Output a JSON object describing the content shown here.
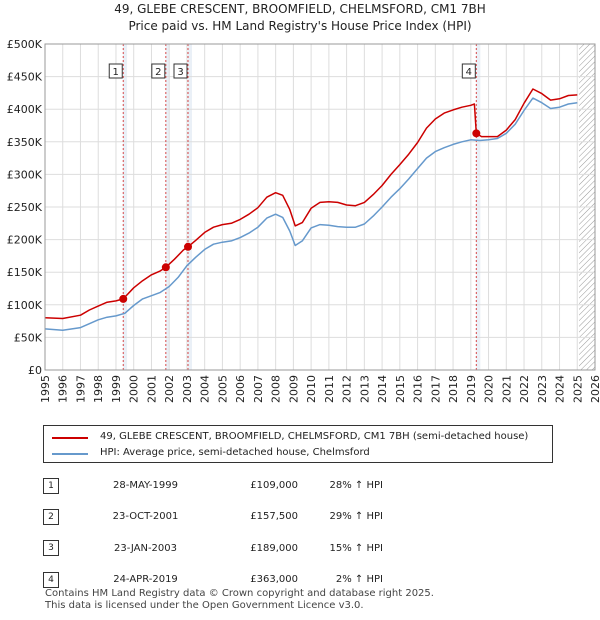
{
  "title_line1": "49, GLEBE CRESCENT, BROOMFIELD, CHELMSFORD, CM1 7BH",
  "title_line2": "Price paid vs. HM Land Registry's House Price Index (HPI)",
  "colors": {
    "property": "#cc0000",
    "hpi": "#6699cc",
    "marker": "#cc0000",
    "vline": "#cc0000",
    "shade": "#dce6f2"
  },
  "chart_data": {
    "type": "line",
    "ylim": [
      0,
      500000
    ],
    "xlim": [
      1995,
      2026
    ],
    "yticks": [
      {
        "value": 0,
        "label": "£0"
      },
      {
        "value": 50000,
        "label": "£50K"
      },
      {
        "value": 100000,
        "label": "£100K"
      },
      {
        "value": 150000,
        "label": "£150K"
      },
      {
        "value": 200000,
        "label": "£200K"
      },
      {
        "value": 250000,
        "label": "£250K"
      },
      {
        "value": 300000,
        "label": "£300K"
      },
      {
        "value": 350000,
        "label": "£350K"
      },
      {
        "value": 400000,
        "label": "£400K"
      },
      {
        "value": 450000,
        "label": "£450K"
      },
      {
        "value": 500000,
        "label": "£500K"
      }
    ],
    "xticks": [
      "1995",
      "1996",
      "1997",
      "1998",
      "1999",
      "2000",
      "2001",
      "2002",
      "2003",
      "2004",
      "2005",
      "2006",
      "2007",
      "2008",
      "2009",
      "2010",
      "2011",
      "2012",
      "2013",
      "2014",
      "2015",
      "2016",
      "2017",
      "2018",
      "2019",
      "2020",
      "2021",
      "2022",
      "2023",
      "2024",
      "2025",
      "2026"
    ],
    "shaded_years": [
      1999.4,
      2001.8,
      2003.06,
      2019.31
    ],
    "hatched_from": 2025.1,
    "series": [
      {
        "name": "49, GLEBE CRESCENT, BROOMFIELD, CHELMSFORD, CM1 7BH (semi-detached house)",
        "color": "#cc0000",
        "points": [
          [
            1995,
            80000
          ],
          [
            1996,
            79000
          ],
          [
            1997,
            84000
          ],
          [
            1997.5,
            92000
          ],
          [
            1998,
            98000
          ],
          [
            1998.5,
            104000
          ],
          [
            1999,
            106000
          ],
          [
            1999.41,
            109000
          ],
          [
            2000,
            126000
          ],
          [
            2000.5,
            137000
          ],
          [
            2001,
            146000
          ],
          [
            2001.5,
            152000
          ],
          [
            2001.81,
            157500
          ],
          [
            2002.3,
            170000
          ],
          [
            2002.8,
            184000
          ],
          [
            2003.06,
            189000
          ],
          [
            2003.5,
            199000
          ],
          [
            2004,
            211000
          ],
          [
            2004.5,
            219000
          ],
          [
            2005,
            223000
          ],
          [
            2005.5,
            225000
          ],
          [
            2006,
            231000
          ],
          [
            2006.5,
            239000
          ],
          [
            2007,
            249000
          ],
          [
            2007.5,
            265000
          ],
          [
            2008,
            272000
          ],
          [
            2008.4,
            268000
          ],
          [
            2008.8,
            246000
          ],
          [
            2009.1,
            221000
          ],
          [
            2009.5,
            226000
          ],
          [
            2010,
            248000
          ],
          [
            2010.5,
            257000
          ],
          [
            2011,
            258000
          ],
          [
            2011.5,
            257000
          ],
          [
            2012,
            253000
          ],
          [
            2012.5,
            252000
          ],
          [
            2013,
            257000
          ],
          [
            2013.5,
            269000
          ],
          [
            2014,
            283000
          ],
          [
            2014.5,
            300000
          ],
          [
            2015,
            315000
          ],
          [
            2015.5,
            331000
          ],
          [
            2016,
            349000
          ],
          [
            2016.5,
            371000
          ],
          [
            2017,
            385000
          ],
          [
            2017.5,
            394000
          ],
          [
            2018,
            399000
          ],
          [
            2018.5,
            403000
          ],
          [
            2019,
            406000
          ],
          [
            2019.2,
            408000
          ],
          [
            2019.31,
            363000
          ],
          [
            2019.6,
            358000
          ],
          [
            2020,
            358000
          ],
          [
            2020.5,
            358000
          ],
          [
            2021,
            368000
          ],
          [
            2021.5,
            384000
          ],
          [
            2022,
            409000
          ],
          [
            2022.5,
            431000
          ],
          [
            2023,
            424000
          ],
          [
            2023.5,
            414000
          ],
          [
            2024,
            416000
          ],
          [
            2024.5,
            421000
          ],
          [
            2025,
            422000
          ]
        ]
      },
      {
        "name": "HPI: Average price, semi-detached house, Chelmsford",
        "color": "#6699cc",
        "points": [
          [
            1995,
            63000
          ],
          [
            1996,
            61000
          ],
          [
            1997,
            65000
          ],
          [
            1997.5,
            71000
          ],
          [
            1998,
            77000
          ],
          [
            1998.5,
            81000
          ],
          [
            1999,
            83000
          ],
          [
            1999.5,
            87000
          ],
          [
            2000,
            99000
          ],
          [
            2000.5,
            109000
          ],
          [
            2001,
            114000
          ],
          [
            2001.5,
            119000
          ],
          [
            2002,
            128000
          ],
          [
            2002.5,
            142000
          ],
          [
            2003,
            160000
          ],
          [
            2003.5,
            173000
          ],
          [
            2004,
            185000
          ],
          [
            2004.5,
            193000
          ],
          [
            2005,
            196000
          ],
          [
            2005.5,
            198000
          ],
          [
            2006,
            203000
          ],
          [
            2006.5,
            210000
          ],
          [
            2007,
            219000
          ],
          [
            2007.5,
            233000
          ],
          [
            2008,
            239000
          ],
          [
            2008.4,
            234000
          ],
          [
            2008.8,
            213000
          ],
          [
            2009.1,
            191000
          ],
          [
            2009.5,
            198000
          ],
          [
            2010,
            218000
          ],
          [
            2010.5,
            223000
          ],
          [
            2011,
            222000
          ],
          [
            2011.5,
            220000
          ],
          [
            2012,
            219000
          ],
          [
            2012.5,
            219000
          ],
          [
            2013,
            224000
          ],
          [
            2013.5,
            236000
          ],
          [
            2014,
            250000
          ],
          [
            2014.5,
            265000
          ],
          [
            2015,
            278000
          ],
          [
            2015.5,
            293000
          ],
          [
            2016,
            309000
          ],
          [
            2016.5,
            325000
          ],
          [
            2017,
            335000
          ],
          [
            2017.5,
            341000
          ],
          [
            2018,
            346000
          ],
          [
            2018.5,
            350000
          ],
          [
            2019,
            353000
          ],
          [
            2019.5,
            352000
          ],
          [
            2020,
            353000
          ],
          [
            2020.5,
            355000
          ],
          [
            2021,
            363000
          ],
          [
            2021.5,
            377000
          ],
          [
            2022,
            398000
          ],
          [
            2022.5,
            417000
          ],
          [
            2023,
            410000
          ],
          [
            2023.5,
            401000
          ],
          [
            2024,
            403000
          ],
          [
            2024.5,
            408000
          ],
          [
            2025,
            410000
          ]
        ]
      }
    ],
    "markers": [
      {
        "num": "1",
        "x": 1999.41,
        "y": 109000
      },
      {
        "num": "2",
        "x": 2001.81,
        "y": 157500
      },
      {
        "num": "3",
        "x": 2003.06,
        "y": 189000
      },
      {
        "num": "4",
        "x": 2019.31,
        "y": 363000
      }
    ]
  },
  "legend": {
    "property": "49, GLEBE CRESCENT, BROOMFIELD, CHELMSFORD, CM1 7BH (semi-detached house)",
    "hpi": "HPI: Average price, semi-detached house, Chelmsford"
  },
  "sales": [
    {
      "num": "1",
      "date": "28-MAY-1999",
      "price": "£109,000",
      "pct": "28% ↑ HPI"
    },
    {
      "num": "2",
      "date": "23-OCT-2001",
      "price": "£157,500",
      "pct": "29% ↑ HPI"
    },
    {
      "num": "3",
      "date": "23-JAN-2003",
      "price": "£189,000",
      "pct": "15% ↑ HPI"
    },
    {
      "num": "4",
      "date": "24-APR-2019",
      "price": "£363,000",
      "pct": "2% ↑ HPI"
    }
  ],
  "footer_line1": "Contains HM Land Registry data © Crown copyright and database right 2025.",
  "footer_line2": "This data is licensed under the Open Government Licence v3.0."
}
